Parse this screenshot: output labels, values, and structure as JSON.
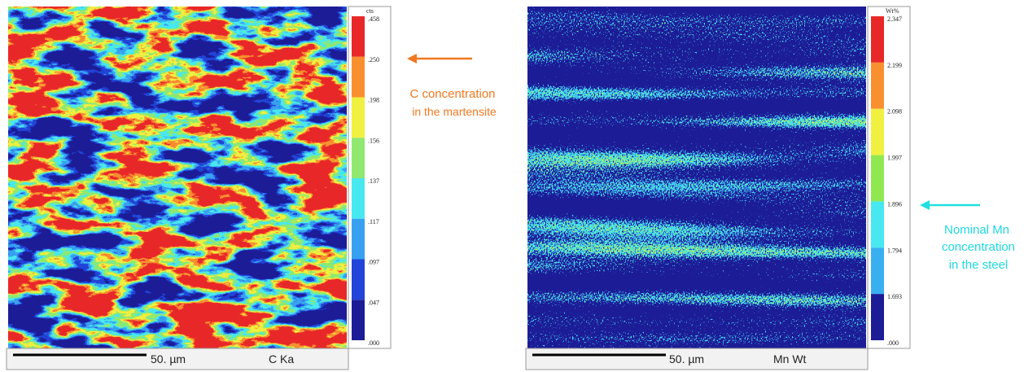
{
  "panels": [
    {
      "legend_unit": "cts",
      "legend_labels": [
        ".458",
        ".250",
        ".198",
        ".156",
        ".137",
        ".117",
        ".097",
        ".047",
        ".000"
      ],
      "scale_label": "50. µm",
      "signal_label": "C Ka"
    },
    {
      "legend_unit": "Wt%",
      "legend_labels": [
        "2.347",
        "2.199",
        "2.098",
        "1.997",
        "1.896",
        "1.794",
        "1.693",
        ".000"
      ],
      "scale_label": "50. µm",
      "signal_label": "Mn Wt"
    }
  ],
  "annotations": [
    {
      "lines": [
        "C concentration",
        "in the martensite"
      ]
    },
    {
      "lines": [
        "Nominal Mn",
        "concentration",
        "in the steel"
      ]
    }
  ]
}
